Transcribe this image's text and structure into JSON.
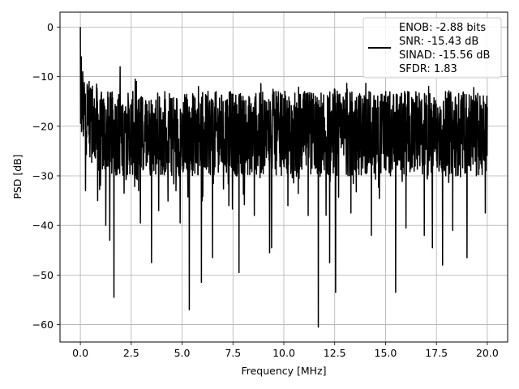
{
  "chart_data": {
    "type": "line",
    "title": "",
    "xlabel": "Frequency [MHz]",
    "ylabel": "PSD [dB]",
    "xlim": [
      -1.0,
      21.0
    ],
    "ylim": [
      -63.5,
      3.0
    ],
    "grid": true,
    "legend_placement": "top-right",
    "x_ticks": [
      0.0,
      2.5,
      5.0,
      7.5,
      10.0,
      12.5,
      15.0,
      17.5,
      20.0
    ],
    "x_tick_labels": [
      "0.0",
      "2.5",
      "5.0",
      "7.5",
      "10.0",
      "12.5",
      "15.0",
      "17.5",
      "20.0"
    ],
    "y_ticks": [
      0,
      -10,
      -20,
      -30,
      -40,
      -50,
      -60
    ],
    "y_tick_labels": [
      "0",
      "−10",
      "−20",
      "−30",
      "−40",
      "−50",
      "−60"
    ],
    "series": [
      {
        "color": "#000000",
        "x_range": [
          0.0,
          20.0
        ],
        "num_points": 2048,
        "noise_floor_db": -21.5,
        "band_db": [
          -30.0,
          -12.0
        ],
        "peaks": [
          {
            "x": 0.0,
            "y": 0.0
          },
          {
            "x": 0.05,
            "y": -6.0
          },
          {
            "x": 0.12,
            "y": -9.0
          },
          {
            "x": 0.35,
            "y": -12.0
          },
          {
            "x": 1.95,
            "y": -8.0
          },
          {
            "x": 2.7,
            "y": -10.5
          },
          {
            "x": 0.8,
            "y": -11.5
          }
        ],
        "dips": [
          {
            "x": 0.25,
            "y": -33.0
          },
          {
            "x": 0.85,
            "y": -35.0
          },
          {
            "x": 1.25,
            "y": -40.0
          },
          {
            "x": 1.45,
            "y": -43.0
          },
          {
            "x": 1.65,
            "y": -54.5
          },
          {
            "x": 2.15,
            "y": -33.5
          },
          {
            "x": 2.95,
            "y": -39.5
          },
          {
            "x": 3.5,
            "y": -47.5
          },
          {
            "x": 3.85,
            "y": -37.0
          },
          {
            "x": 4.9,
            "y": -39.5
          },
          {
            "x": 5.35,
            "y": -57.0
          },
          {
            "x": 5.95,
            "y": -51.5
          },
          {
            "x": 6.5,
            "y": -46.5
          },
          {
            "x": 7.3,
            "y": -36.0
          },
          {
            "x": 7.8,
            "y": -49.5
          },
          {
            "x": 8.55,
            "y": -38.0
          },
          {
            "x": 9.3,
            "y": -45.5
          },
          {
            "x": 9.4,
            "y": -44.5
          },
          {
            "x": 10.2,
            "y": -36.0
          },
          {
            "x": 11.2,
            "y": -38.0
          },
          {
            "x": 11.7,
            "y": -60.5
          },
          {
            "x": 12.25,
            "y": -47.5
          },
          {
            "x": 12.55,
            "y": -53.5
          },
          {
            "x": 13.3,
            "y": -37.5
          },
          {
            "x": 14.3,
            "y": -42.0
          },
          {
            "x": 15.5,
            "y": -53.5
          },
          {
            "x": 16.0,
            "y": -40.5
          },
          {
            "x": 16.9,
            "y": -42.0
          },
          {
            "x": 17.3,
            "y": -44.5
          },
          {
            "x": 17.8,
            "y": -48.0
          },
          {
            "x": 18.3,
            "y": -41.0
          },
          {
            "x": 19.0,
            "y": -46.5
          },
          {
            "x": 19.9,
            "y": -37.5
          }
        ],
        "legend_lines": [
          "ENOB: -2.88 bits",
          "SNR: -15.43 dB",
          "SINAD: -15.56 dB",
          "SFDR: 1.83"
        ]
      }
    ]
  }
}
